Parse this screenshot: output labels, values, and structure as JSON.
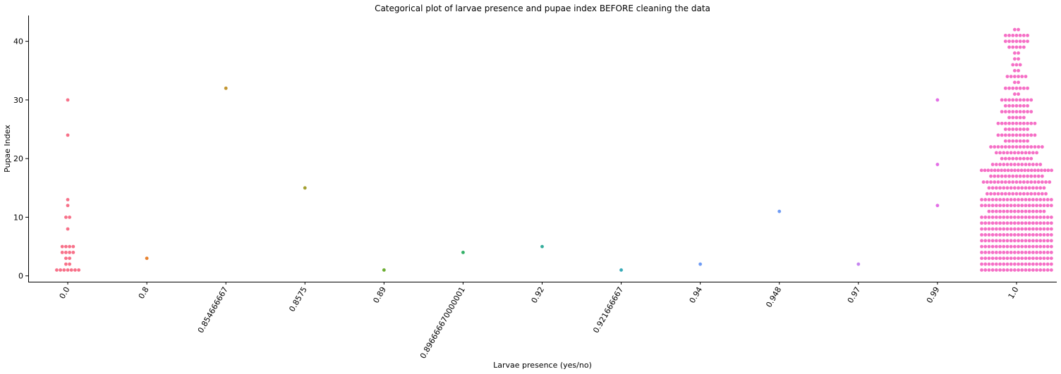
{
  "chart_data": {
    "type": "swarm",
    "title": "Categorical plot of larvae presence and pupae index BEFORE cleaning the data",
    "x_label": "Larvae presence (yes/no)",
    "y_label": "Pupae Index",
    "categories": [
      "0.0",
      "0.8",
      "0.854666667",
      "0.8575",
      "0.89",
      "0.896666670000001",
      "0.92",
      "0.921666667",
      "0.94",
      "0.948",
      "0.97",
      "0.99",
      "1.0"
    ],
    "colors": [
      "#f77189",
      "#e8822f",
      "#c29632",
      "#a4a031",
      "#6bad31",
      "#33b067",
      "#35ad9c",
      "#37abb8",
      "#6e9bf4",
      "#6e9bf4",
      "#c584f0",
      "#e36ee6",
      "#f56fc6"
    ],
    "values": [
      [
        1,
        1,
        1,
        1,
        1,
        1,
        1,
        2,
        2,
        3,
        3,
        4,
        4,
        4,
        4,
        5,
        5,
        5,
        5,
        8,
        10,
        10,
        12,
        13,
        24,
        30
      ],
      [
        3
      ],
      [
        32
      ],
      [
        15
      ],
      [
        1
      ],
      [
        4
      ],
      [
        5
      ],
      [
        1
      ],
      [
        2
      ],
      [
        11
      ],
      [
        2
      ],
      [
        30,
        19,
        12
      ],
      [
        1,
        1,
        1,
        1,
        1,
        1,
        1,
        1,
        1,
        1,
        1,
        1,
        1,
        1,
        1,
        1,
        1,
        1,
        1,
        1,
        2,
        2,
        2,
        2,
        2,
        2,
        2,
        2,
        2,
        2,
        2,
        2,
        2,
        2,
        2,
        2,
        2,
        2,
        2,
        2,
        3,
        3,
        3,
        3,
        3,
        3,
        3,
        3,
        3,
        3,
        3,
        3,
        3,
        3,
        3,
        3,
        3,
        3,
        3,
        3,
        4,
        4,
        4,
        4,
        4,
        4,
        4,
        4,
        4,
        4,
        4,
        4,
        4,
        4,
        4,
        4,
        4,
        4,
        4,
        4,
        5,
        5,
        5,
        5,
        5,
        5,
        5,
        5,
        5,
        5,
        5,
        5,
        5,
        5,
        5,
        5,
        5,
        5,
        5,
        5,
        6,
        6,
        6,
        6,
        6,
        6,
        6,
        6,
        6,
        6,
        6,
        6,
        6,
        6,
        6,
        6,
        6,
        6,
        6,
        6,
        7,
        7,
        7,
        7,
        7,
        7,
        7,
        7,
        7,
        7,
        7,
        7,
        7,
        7,
        7,
        7,
        7,
        7,
        7,
        7,
        8,
        8,
        8,
        8,
        8,
        8,
        8,
        8,
        8,
        8,
        8,
        8,
        8,
        8,
        8,
        8,
        8,
        8,
        8,
        8,
        9,
        9,
        9,
        9,
        9,
        9,
        9,
        9,
        9,
        9,
        9,
        9,
        9,
        9,
        9,
        9,
        9,
        9,
        9,
        9,
        10,
        10,
        10,
        10,
        10,
        10,
        10,
        10,
        10,
        10,
        10,
        10,
        10,
        10,
        10,
        10,
        10,
        10,
        10,
        10,
        11,
        11,
        11,
        11,
        11,
        11,
        11,
        11,
        11,
        11,
        11,
        11,
        11,
        11,
        11,
        11,
        12,
        12,
        12,
        12,
        12,
        12,
        12,
        12,
        12,
        12,
        12,
        12,
        12,
        12,
        12,
        12,
        12,
        12,
        12,
        12,
        13,
        13,
        13,
        13,
        13,
        13,
        13,
        13,
        13,
        13,
        13,
        13,
        13,
        13,
        13,
        13,
        13,
        13,
        13,
        13,
        14,
        14,
        14,
        14,
        14,
        14,
        14,
        14,
        14,
        14,
        14,
        14,
        14,
        14,
        14,
        14,
        14,
        15,
        15,
        15,
        15,
        15,
        15,
        15,
        15,
        15,
        15,
        15,
        15,
        15,
        15,
        15,
        15,
        16,
        16,
        16,
        16,
        16,
        16,
        16,
        16,
        16,
        16,
        16,
        16,
        16,
        16,
        16,
        16,
        16,
        16,
        16,
        17,
        17,
        17,
        17,
        17,
        17,
        17,
        17,
        17,
        17,
        17,
        17,
        17,
        17,
        17,
        18,
        18,
        18,
        18,
        18,
        18,
        18,
        18,
        18,
        18,
        18,
        18,
        18,
        18,
        18,
        18,
        18,
        18,
        18,
        18,
        18,
        18,
        19,
        19,
        19,
        19,
        19,
        19,
        19,
        19,
        19,
        19,
        19,
        19,
        19,
        19,
        20,
        20,
        20,
        20,
        20,
        20,
        20,
        20,
        20,
        21,
        21,
        21,
        21,
        21,
        21,
        21,
        21,
        21,
        21,
        21,
        21,
        22,
        22,
        22,
        22,
        22,
        22,
        22,
        22,
        22,
        22,
        22,
        22,
        22,
        22,
        22,
        23,
        23,
        23,
        23,
        23,
        23,
        23,
        24,
        24,
        24,
        24,
        24,
        24,
        24,
        24,
        24,
        24,
        24,
        25,
        25,
        25,
        25,
        25,
        25,
        25,
        26,
        26,
        26,
        26,
        26,
        26,
        26,
        26,
        26,
        26,
        26,
        27,
        27,
        27,
        27,
        27,
        28,
        28,
        28,
        28,
        28,
        28,
        28,
        28,
        28,
        29,
        29,
        29,
        29,
        29,
        29,
        29,
        30,
        30,
        30,
        30,
        30,
        30,
        30,
        30,
        30,
        31,
        31,
        32,
        32,
        32,
        32,
        32,
        32,
        32,
        33,
        33,
        34,
        34,
        34,
        34,
        34,
        34,
        35,
        35,
        36,
        36,
        36,
        37,
        37,
        38,
        38,
        39,
        39,
        39,
        39,
        39,
        40,
        40,
        40,
        40,
        40,
        40,
        40,
        41,
        41,
        41,
        41,
        41,
        41,
        41,
        42,
        42
      ]
    ],
    "ylim": [
      -1,
      44.4
    ],
    "yticks": [
      0,
      10,
      20,
      30,
      40
    ]
  }
}
